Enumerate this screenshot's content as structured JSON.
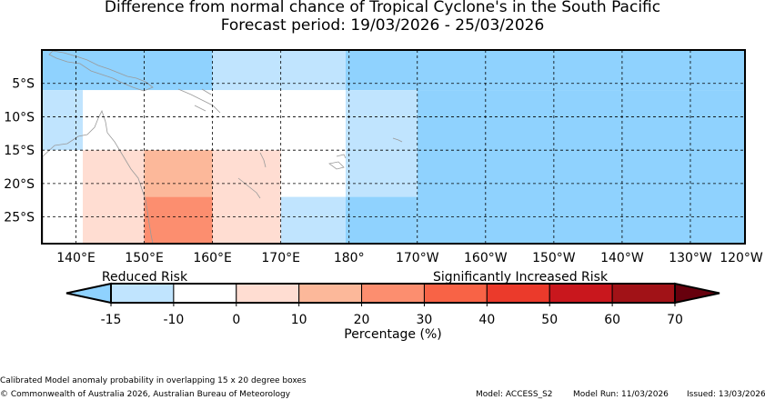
{
  "title": {
    "line1": "Difference from normal chance of Tropical Cyclone's in the South Pacific",
    "line2": "Forecast period: 19/03/2026 - 25/03/2026"
  },
  "map": {
    "lon_range": [
      135,
      238
    ],
    "lat_range": [
      0,
      -29
    ],
    "lon_ticks": [
      {
        "lon": 140,
        "label": "140°E"
      },
      {
        "lon": 150,
        "label": "150°E"
      },
      {
        "lon": 160,
        "label": "160°E"
      },
      {
        "lon": 170,
        "label": "170°E"
      },
      {
        "lon": 180,
        "label": "180°"
      },
      {
        "lon": 190,
        "label": "170°W"
      },
      {
        "lon": 200,
        "label": "160°W"
      },
      {
        "lon": 210,
        "label": "150°W"
      },
      {
        "lon": 220,
        "label": "140°W"
      },
      {
        "lon": 230,
        "label": "130°W"
      },
      {
        "lon": 240,
        "label": "120°W"
      }
    ],
    "lat_ticks": [
      {
        "lat": -5,
        "label": "5°S"
      },
      {
        "lat": -10,
        "label": "10°S"
      },
      {
        "lat": -15,
        "label": "15°S"
      },
      {
        "lat": -20,
        "label": "20°S"
      },
      {
        "lat": -25,
        "label": "25°S"
      }
    ],
    "cells": [
      {
        "lon0": 135,
        "lon1": 160,
        "lat0": 0,
        "lat1": -6,
        "value": -12
      },
      {
        "lon0": 160,
        "lon1": 179.5,
        "lat0": 0,
        "lat1": -6,
        "value": -7
      },
      {
        "lon0": 179.5,
        "lon1": 238,
        "lat0": 0,
        "lat1": -6,
        "value": -12
      },
      {
        "lon0": 135,
        "lon1": 141,
        "lat0": -6,
        "lat1": -15,
        "value": -7
      },
      {
        "lon0": 179.5,
        "lon1": 190,
        "lat0": -6,
        "lat1": -22,
        "value": -7
      },
      {
        "lon0": 190,
        "lon1": 238,
        "lat0": -6,
        "lat1": -29,
        "value": -12
      },
      {
        "lon0": 141,
        "lon1": 150,
        "lat0": -15,
        "lat1": -29,
        "value": 5
      },
      {
        "lon0": 150,
        "lon1": 160,
        "lat0": -15,
        "lat1": -22,
        "value": 15
      },
      {
        "lon0": 150,
        "lon1": 160,
        "lat0": -22,
        "lat1": -29,
        "value": 25
      },
      {
        "lon0": 160,
        "lon1": 170,
        "lat0": -15,
        "lat1": -29,
        "value": 5
      },
      {
        "lon0": 170,
        "lon1": 179.5,
        "lat0": -22,
        "lat1": -29,
        "value": -7
      },
      {
        "lon0": 179.5,
        "lon1": 190,
        "lat0": -22,
        "lat1": -29,
        "value": -12
      }
    ],
    "fill_colors": {
      "below_minus_15": "#8fd2fe",
      "minus_15_to_minus_10": "#8fd2fe",
      "minus_10_to_0": "#c0e4fe",
      "0_to_10": "#ffddd2",
      "10_to_20": "#fcb89a",
      "20_to_30": "#fc8e6f",
      "gridline": "#000000",
      "coastline": "#9a9a9a"
    }
  },
  "colorbar": {
    "label_left": "Reduced Risk",
    "label_right": "Significantly Increased Risk",
    "xlabel": "Percentage (%)",
    "tick_labels": [
      "-15",
      "-10",
      "0",
      "10",
      "20",
      "30",
      "40",
      "50",
      "60",
      "70"
    ],
    "boundaries": [
      -15,
      -10,
      0,
      10,
      20,
      30,
      40,
      50,
      60,
      70
    ],
    "colors": [
      "#c0e4fe",
      "#ffffff",
      "#ffddd2",
      "#fcb89a",
      "#fc8e6f",
      "#f86346",
      "#eb3a2b",
      "#c9171d",
      "#a11217"
    ],
    "under_color": "#8fd2fe",
    "over_color": "#67000d"
  },
  "footer": {
    "note": "Calibrated Model anomaly probability in overlapping 15 x 20 degree boxes",
    "copyright": "© Commonwealth of Australia 2026, Australian Bureau of Meteorology",
    "model": "Model: ACCESS_S2",
    "model_run": "Model Run: 11/03/2026",
    "issued": "Issued: 13/03/2026"
  }
}
